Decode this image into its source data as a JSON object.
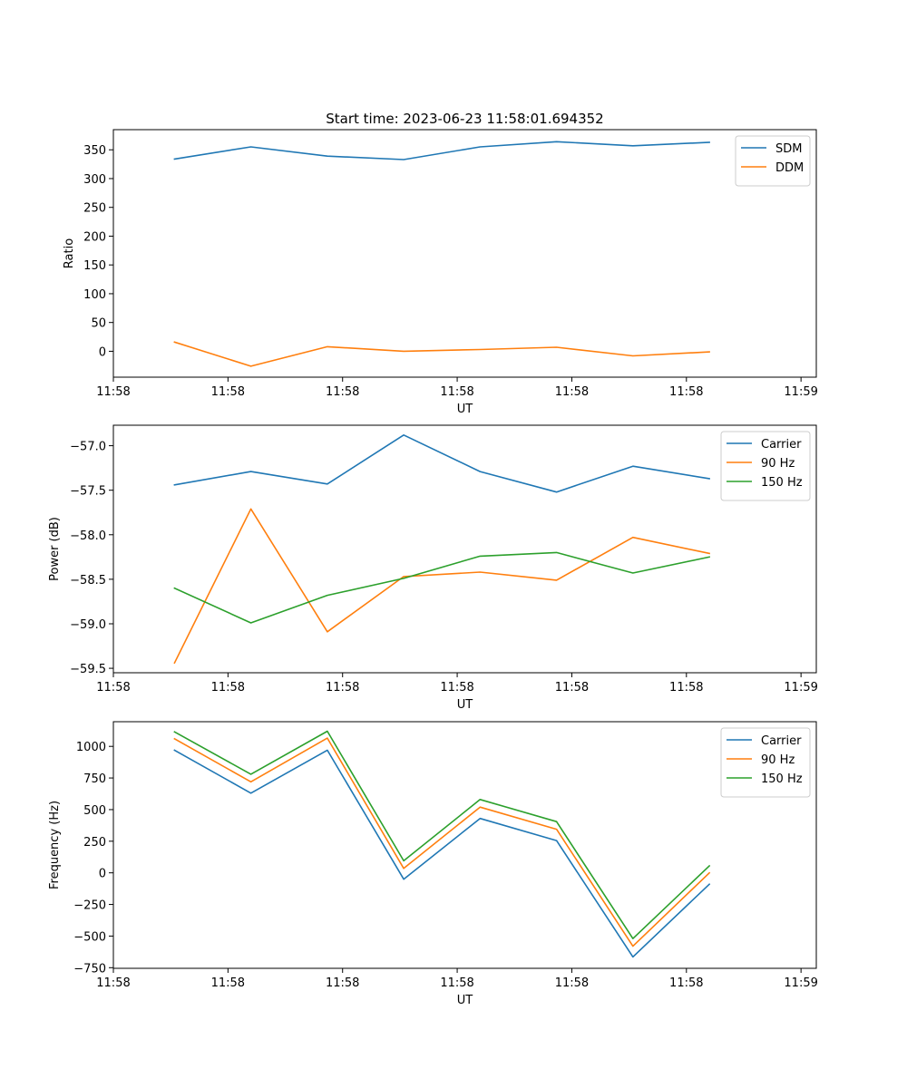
{
  "colors": {
    "blue": "#1f77b4",
    "orange": "#ff7f0e",
    "green": "#2ca02c"
  },
  "chart_data": [
    {
      "type": "line",
      "title": "Start time: 2023-06-23 11:58:01.694352",
      "xlabel": "UT",
      "ylabel": "Ratio",
      "x": [
        1.0,
        2.0,
        3.0,
        4.0,
        5.0,
        6.0,
        7.0,
        8.0
      ],
      "xlim": [
        0.2,
        9.4
      ],
      "xticks": [
        0.2,
        1.7,
        3.2,
        4.7,
        6.2,
        7.7,
        9.2
      ],
      "xticklabels": [
        "11:58",
        "11:58",
        "11:58",
        "11:58",
        "11:58",
        "11:58",
        "11:59"
      ],
      "ylim": [
        -45,
        385
      ],
      "yticks": [
        0,
        50,
        100,
        150,
        200,
        250,
        300,
        350
      ],
      "legend": "top-right",
      "series": [
        {
          "name": "SDM",
          "color": "#1f77b4",
          "values": [
            334,
            355,
            339,
            333,
            355,
            364,
            357,
            363
          ]
        },
        {
          "name": "DDM",
          "color": "#ff7f0e",
          "values": [
            16,
            -26,
            8,
            0,
            3,
            7,
            -8,
            -1
          ]
        }
      ]
    },
    {
      "type": "line",
      "title": "",
      "xlabel": "UT",
      "ylabel": "Power (dB)",
      "x": [
        1.0,
        2.0,
        3.0,
        4.0,
        5.0,
        6.0,
        7.0,
        8.0
      ],
      "xlim": [
        0.2,
        9.4
      ],
      "xticks": [
        0.2,
        1.7,
        3.2,
        4.7,
        6.2,
        7.7,
        9.2
      ],
      "xticklabels": [
        "11:58",
        "11:58",
        "11:58",
        "11:58",
        "11:58",
        "11:58",
        "11:59"
      ],
      "ylim": [
        -59.55,
        -56.77
      ],
      "yticks": [
        -59.5,
        -59.0,
        -58.5,
        -58.0,
        -57.5,
        -57.0
      ],
      "yticklabels": [
        "−59.5",
        "−59.0",
        "−58.5",
        "−58.0",
        "−57.5",
        "−57.0"
      ],
      "legend": "top-right",
      "series": [
        {
          "name": "Carrier",
          "color": "#1f77b4",
          "values": [
            -57.44,
            -57.29,
            -57.43,
            -56.88,
            -57.29,
            -57.52,
            -57.23,
            -57.37
          ]
        },
        {
          "name": "90 Hz",
          "color": "#ff7f0e",
          "values": [
            -59.44,
            -57.71,
            -59.09,
            -58.47,
            -58.42,
            -58.51,
            -58.03,
            -58.21
          ]
        },
        {
          "name": "150 Hz",
          "color": "#2ca02c",
          "values": [
            -58.6,
            -58.99,
            -58.68,
            -58.49,
            -58.24,
            -58.2,
            -58.43,
            -58.25
          ]
        }
      ]
    },
    {
      "type": "line",
      "title": "",
      "xlabel": "UT",
      "ylabel": "Frequency (Hz)",
      "x": [
        1.0,
        2.0,
        3.0,
        4.0,
        5.0,
        6.0,
        7.0,
        8.0
      ],
      "xlim": [
        0.2,
        9.4
      ],
      "xticks": [
        0.2,
        1.7,
        3.2,
        4.7,
        6.2,
        7.7,
        9.2
      ],
      "xticklabels": [
        "11:58",
        "11:58",
        "11:58",
        "11:58",
        "11:58",
        "11:58",
        "11:59"
      ],
      "ylim": [
        -755,
        1195
      ],
      "yticks": [
        -750,
        -500,
        -250,
        0,
        250,
        500,
        750,
        1000
      ],
      "yticklabels": [
        "−750",
        "−500",
        "−250",
        "0",
        "250",
        "500",
        "750",
        "1000"
      ],
      "legend": "top-right",
      "series": [
        {
          "name": "Carrier",
          "color": "#1f77b4",
          "values": [
            970,
            630,
            970,
            -50,
            430,
            255,
            -665,
            -90
          ]
        },
        {
          "name": "90 Hz",
          "color": "#ff7f0e",
          "values": [
            1060,
            720,
            1065,
            35,
            520,
            345,
            -580,
            0
          ]
        },
        {
          "name": "150 Hz",
          "color": "#2ca02c",
          "values": [
            1115,
            780,
            1120,
            95,
            580,
            405,
            -520,
            55
          ]
        }
      ]
    }
  ]
}
